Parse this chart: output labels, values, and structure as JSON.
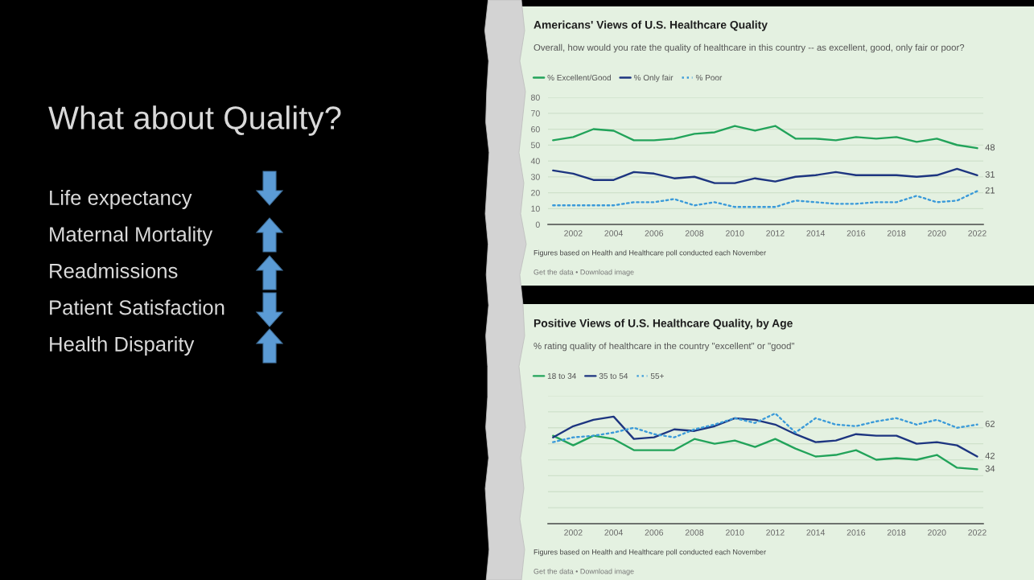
{
  "chart_data": [
    {
      "type": "other",
      "title": "What about Quality?",
      "annotations": [
        "Life expectancy",
        "Maternal Mortality",
        "Readmissions",
        "Patient Satisfaction",
        "Health Disparity"
      ]
    },
    {
      "type": "line",
      "title": "Americans' Views of U.S. Healthcare Quality",
      "subtitle": "Overall, how would you rate the quality of healthcare in this country -- as excellent, good, only fair or poor?",
      "x": [
        2001,
        2002,
        2003,
        2004,
        2005,
        2006,
        2007,
        2008,
        2009,
        2010,
        2011,
        2012,
        2013,
        2014,
        2015,
        2016,
        2017,
        2018,
        2019,
        2020,
        2021,
        2022
      ],
      "series": [
        {
          "name": "% Excellent/Good",
          "color": "#22a35a",
          "line_style": "solid",
          "values": [
            53,
            55,
            60,
            59,
            53,
            53,
            54,
            57,
            58,
            62,
            59,
            62,
            54,
            54,
            53,
            55,
            54,
            55,
            52,
            54,
            50,
            48
          ],
          "value_labels": [
            null,
            null,
            null,
            null,
            null,
            null,
            null,
            null,
            null,
            null,
            null,
            null,
            null,
            null,
            null,
            null,
            null,
            null,
            null,
            null,
            null,
            "48"
          ]
        },
        {
          "name": "% Only fair",
          "color": "#1d3580",
          "line_style": "solid",
          "values": [
            34,
            32,
            28,
            28,
            33,
            32,
            29,
            30,
            26,
            26,
            29,
            27,
            30,
            31,
            33,
            31,
            31,
            31,
            30,
            31,
            35,
            31
          ],
          "value_labels": [
            null,
            null,
            null,
            null,
            null,
            null,
            null,
            null,
            null,
            null,
            null,
            null,
            null,
            null,
            null,
            null,
            null,
            null,
            null,
            null,
            null,
            "31"
          ]
        },
        {
          "name": "% Poor",
          "color": "#3a9ad9",
          "line_style": "dotted",
          "values": [
            12,
            12,
            12,
            12,
            14,
            14,
            16,
            12,
            14,
            11,
            11,
            11,
            15,
            14,
            13,
            13,
            14,
            14,
            18,
            14,
            15,
            21
          ],
          "value_labels": [
            null,
            null,
            null,
            null,
            null,
            null,
            null,
            null,
            null,
            null,
            null,
            null,
            null,
            null,
            null,
            null,
            null,
            null,
            null,
            null,
            null,
            "21"
          ]
        }
      ],
      "xlim": [
        2000.75,
        2022.3
      ],
      "xticks": [
        2002,
        2004,
        2006,
        2008,
        2010,
        2012,
        2014,
        2016,
        2018,
        2020,
        2022
      ],
      "ylim": [
        0,
        80
      ],
      "yticks": [
        0,
        10,
        20,
        30,
        40,
        50,
        60,
        70,
        80
      ],
      "grid": "y",
      "legend": "top left",
      "annotations": [
        "Figures based on Health and Healthcare poll conducted each November",
        "Get the data • Download image"
      ]
    },
    {
      "type": "line",
      "title": "Positive Views of U.S. Healthcare Quality, by Age",
      "subtitle": "% rating quality of healthcare in the country \"excellent\" or \"good\"",
      "x": [
        2001,
        2002,
        2003,
        2004,
        2005,
        2006,
        2007,
        2008,
        2009,
        2010,
        2011,
        2012,
        2013,
        2014,
        2015,
        2016,
        2017,
        2018,
        2019,
        2020,
        2021,
        2022
      ],
      "series": [
        {
          "name": "18 to 34",
          "color": "#22a35a",
          "line_style": "solid",
          "values": [
            55,
            49,
            55,
            53,
            46,
            46,
            46,
            53,
            50,
            52,
            48,
            53,
            47,
            42,
            43,
            46,
            40,
            41,
            40,
            43,
            35,
            34
          ],
          "value_labels": [
            null,
            null,
            null,
            null,
            null,
            null,
            null,
            null,
            null,
            null,
            null,
            null,
            null,
            null,
            null,
            null,
            null,
            null,
            null,
            null,
            null,
            "34"
          ]
        },
        {
          "name": "35 to 54",
          "color": "#1d3580",
          "line_style": "solid",
          "values": [
            54,
            61,
            65,
            67,
            53,
            54,
            59,
            58,
            61,
            66,
            65,
            62,
            56,
            51,
            52,
            56,
            55,
            55,
            50,
            51,
            49,
            42
          ],
          "value_labels": [
            null,
            null,
            null,
            null,
            null,
            null,
            null,
            null,
            null,
            null,
            null,
            null,
            null,
            null,
            null,
            null,
            null,
            null,
            null,
            null,
            null,
            "42"
          ]
        },
        {
          "name": "55+",
          "color": "#3a9ad9",
          "line_style": "dotted",
          "values": [
            51,
            54,
            55,
            57,
            60,
            56,
            54,
            59,
            62,
            66,
            63,
            69,
            57,
            66,
            62,
            61,
            64,
            66,
            62,
            65,
            60,
            62
          ],
          "value_labels": [
            null,
            null,
            null,
            null,
            null,
            null,
            null,
            null,
            null,
            null,
            null,
            null,
            null,
            null,
            null,
            null,
            null,
            null,
            null,
            null,
            null,
            "62"
          ]
        }
      ],
      "xlim": [
        2000.75,
        2022.3
      ],
      "xticks": [
        2002,
        2004,
        2006,
        2008,
        2010,
        2012,
        2014,
        2016,
        2018,
        2020,
        2022
      ],
      "ylim": [
        0,
        80
      ],
      "yticks": [
        {
          "value": 0,
          "label": null
        },
        {
          "value": 10,
          "label": null
        },
        {
          "value": 20,
          "label": null
        },
        {
          "value": 30,
          "label": null
        },
        {
          "value": 40,
          "label": null
        },
        {
          "value": 50,
          "label": null
        },
        {
          "value": 60,
          "label": null
        },
        {
          "value": 70,
          "label": null
        },
        {
          "value": 80,
          "label": null
        }
      ],
      "tick_labels": "x",
      "grid": "y",
      "legend": "top left",
      "annotations": [
        "Figures based on Health and Healthcare poll conducted each November",
        "Get the data • Download image"
      ]
    }
  ]
}
